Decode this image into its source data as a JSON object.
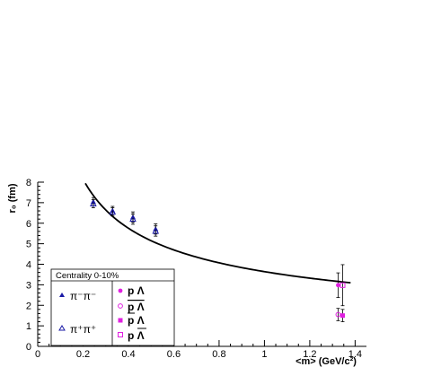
{
  "chart_data": {
    "type": "scatter",
    "title": "",
    "xlabel": "<m> (GeV/c²)",
    "ylabel": "r₀ (fm)",
    "xlim": [
      0,
      1.45
    ],
    "ylim": [
      0,
      8
    ],
    "xticks": [
      "0",
      "0.2",
      "0.4",
      "0.6",
      "0.8",
      "1",
      "1.2",
      "1.4"
    ],
    "yticks": [
      "0",
      "1",
      "2",
      "3",
      "4",
      "5",
      "6",
      "7",
      "8"
    ],
    "grid": false,
    "legend": {
      "placement": "bottom-left",
      "title": "Centrality 0-10%",
      "pi_minus": "π⁻π⁻",
      "pi_plus": "π⁺π⁺",
      "p_lambda": "p Λ",
      "pbar_lambdabar": "p Λ",
      "pbar_lambda": "p Λ",
      "p_lambdabar": "p Λ"
    },
    "series": [
      {
        "key": "pimpim",
        "color": "#1a1aa6",
        "marker": "triangle-filled",
        "points": [
          {
            "x": 0.245,
            "y": 7.05,
            "err": 0.2
          },
          {
            "x": 0.33,
            "y": 6.62,
            "err": 0.2
          },
          {
            "x": 0.42,
            "y": 6.3,
            "err": 0.25
          },
          {
            "x": 0.52,
            "y": 5.72,
            "err": 0.25
          }
        ]
      },
      {
        "key": "pippip",
        "color": "#1a1aa6",
        "marker": "triangle-open",
        "points": [
          {
            "x": 0.245,
            "y": 6.95,
            "err": 0.2
          },
          {
            "x": 0.33,
            "y": 6.55,
            "err": 0.2
          },
          {
            "x": 0.42,
            "y": 6.2,
            "err": 0.25
          },
          {
            "x": 0.52,
            "y": 5.62,
            "err": 0.25
          }
        ]
      },
      {
        "key": "plam",
        "color": "#e020e0",
        "marker": "circle-filled",
        "points": [
          {
            "x": 1.325,
            "y": 2.98,
            "err": 0.6
          }
        ]
      },
      {
        "key": "pbarlambar",
        "color": "#e020e0",
        "marker": "circle-open",
        "points": [
          {
            "x": 1.325,
            "y": 1.55,
            "err": 0.3
          }
        ]
      },
      {
        "key": "pbarlam",
        "color": "#e020e0",
        "marker": "square-filled",
        "points": [
          {
            "x": 1.345,
            "y": 1.5,
            "err": 0.3
          }
        ]
      },
      {
        "key": "plambar",
        "color": "#e020e0",
        "marker": "square-open",
        "points": [
          {
            "x": 1.345,
            "y": 2.98,
            "err": 1.0
          }
        ]
      }
    ],
    "curve": {
      "form": "a/sqrt(m)",
      "a": 3.64,
      "xmin": 0.21,
      "xmax": 1.38
    }
  }
}
